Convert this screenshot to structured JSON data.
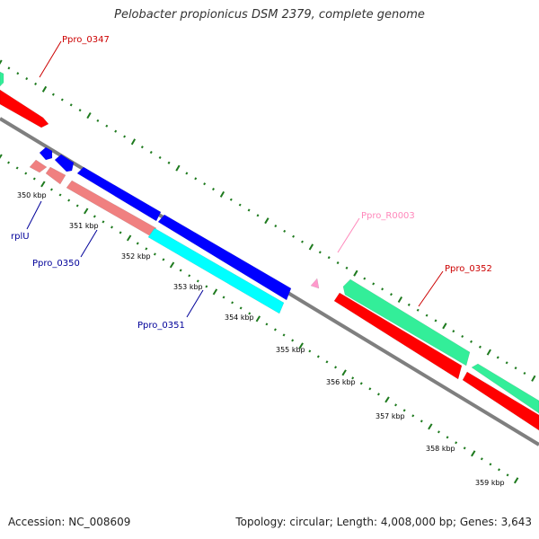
{
  "title": "Pelobacter propionicus DSM 2379, complete genome",
  "footer": {
    "accession": "Accession: NC_008609",
    "topology": "Topology: circular; Length: 4,008,000 bp; Genes: 3,643"
  },
  "colors": {
    "backbone": "#7f7f7f",
    "tick": "#1e7a1e",
    "red_gene": "#ff0000",
    "pink_gene": "#f08080",
    "blue_gene": "#0000ff",
    "cyan_gene": "#00ffff",
    "green_gene": "#33ee99",
    "trna": "#ff99cc",
    "label_red": "#cc0000",
    "label_blue": "#000099",
    "label_pink": "#ff88bb"
  },
  "ticks": [
    "350 kbp",
    "351 kbp",
    "352 kbp",
    "353 kbp",
    "354 kbp",
    "355 kbp",
    "356 kbp",
    "357 kbp",
    "358 kbp",
    "359 kbp"
  ],
  "gene_labels": {
    "ppro_0347": "Ppro_0347",
    "rplu": "rplU",
    "ppro_0350": "Ppro_0350",
    "ppro_0351": "Ppro_0351",
    "ppro_r0003": "Ppro_R0003",
    "ppro_0352": "Ppro_0352"
  }
}
